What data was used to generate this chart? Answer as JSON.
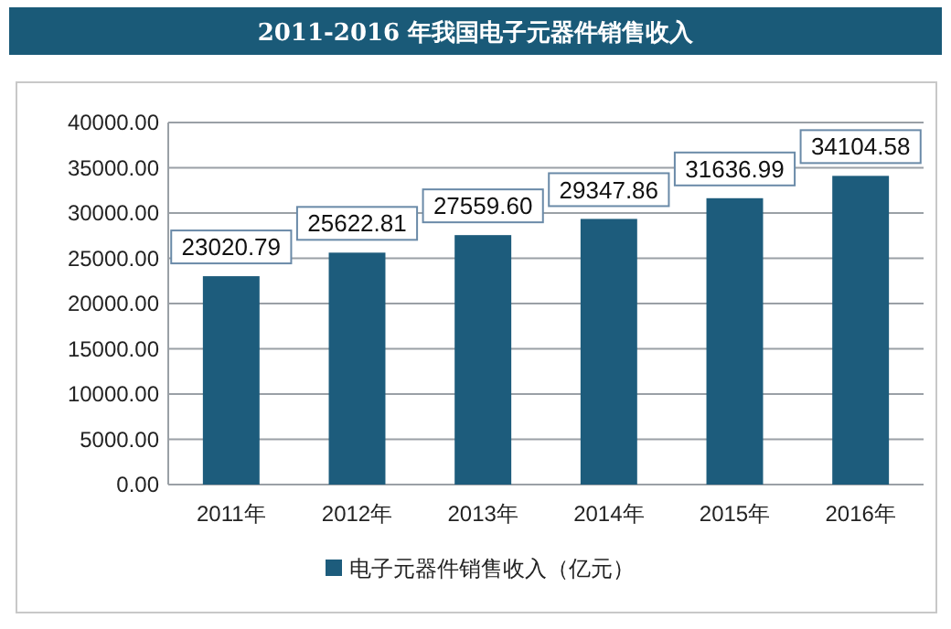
{
  "chart_data": {
    "type": "bar",
    "title": "2011-2016 年我国电子元器件销售收入",
    "categories": [
      "2011年",
      "2012年",
      "2013年",
      "2014年",
      "2015年",
      "2016年"
    ],
    "series": [
      {
        "name": "电子元器件销售收入（亿元）",
        "color": "#1d5c7c",
        "values": [
          23020.79,
          25622.81,
          27559.6,
          29347.86,
          31636.99,
          34104.58
        ]
      }
    ],
    "value_labels": [
      "23020.79",
      "25622.81",
      "27559.60",
      "29347.86",
      "31636.99",
      "34104.58"
    ],
    "ylim": [
      0,
      40000
    ],
    "yticks": [
      {
        "value": 0,
        "label": "0.00"
      },
      {
        "value": 5000,
        "label": "5000.00"
      },
      {
        "value": 10000,
        "label": "10000.00"
      },
      {
        "value": 15000,
        "label": "15000.00"
      },
      {
        "value": 20000,
        "label": "20000.00"
      },
      {
        "value": 25000,
        "label": "25000.00"
      },
      {
        "value": 30000,
        "label": "30000.00"
      },
      {
        "value": 35000,
        "label": "35000.00"
      },
      {
        "value": 40000,
        "label": "40000.00"
      }
    ],
    "grid": "y",
    "legend": "bottom"
  }
}
